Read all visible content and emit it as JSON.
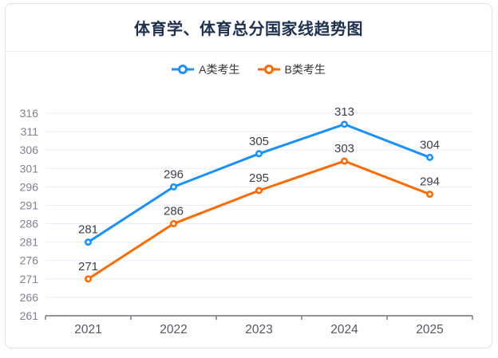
{
  "card": {
    "title_note": "title lives in chart_data.title"
  },
  "chart_data": {
    "type": "line",
    "title": "体育学、体育总分国家线趋势图",
    "categories": [
      "2021",
      "2022",
      "2023",
      "2024",
      "2025"
    ],
    "series": [
      {
        "name": "A类考生",
        "color": "#1890ff",
        "values": [
          281,
          296,
          305,
          313,
          304
        ]
      },
      {
        "name": "B类考生",
        "color": "#ff6a00",
        "values": [
          271,
          286,
          295,
          303,
          294
        ]
      }
    ],
    "ylim": [
      261,
      316
    ],
    "y_tick_interval": 5,
    "y_ticks": [
      261,
      266,
      271,
      276,
      281,
      286,
      291,
      296,
      301,
      306,
      311,
      316
    ],
    "grid": true,
    "legend_position": "top",
    "data_labels_shown": true,
    "marker": "hollow-circle"
  },
  "style_colors": {
    "grid_line": "#e8eef7",
    "axis_line": "#6e7079",
    "y_tick_label": "#7d828c",
    "x_tick_label": "#54575e",
    "data_label": "#3c4045",
    "title": "#1f3150",
    "legend_text": "#333333",
    "card_border": "#e1e3e6"
  }
}
